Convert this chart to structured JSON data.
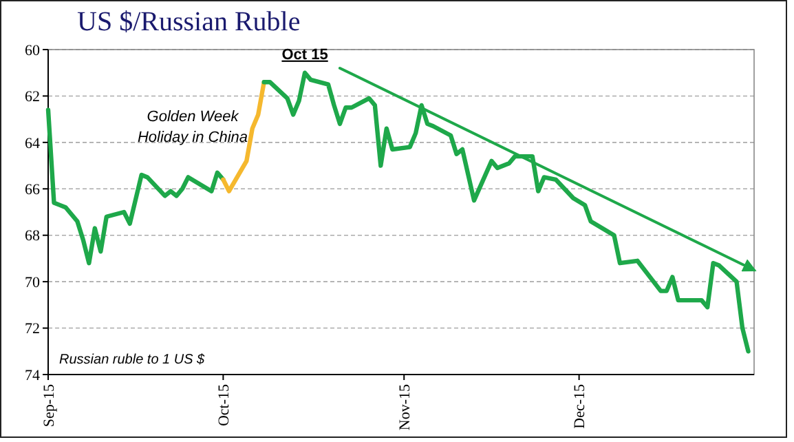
{
  "chart_data": {
    "type": "line",
    "title": "US $/Russian Ruble",
    "xlim": [
      "2015-09-01",
      "2015-12-31"
    ],
    "xticks": [
      {
        "value": "2015-09-01",
        "label": "Sep-15"
      },
      {
        "value": "2015-10-01",
        "label": "Oct-15"
      },
      {
        "value": "2015-11-01",
        "label": "Nov-15"
      },
      {
        "value": "2015-12-01",
        "label": "Dec-15"
      }
    ],
    "ylim": [
      74,
      60
    ],
    "yticks": [
      60,
      62,
      64,
      66,
      68,
      70,
      72,
      74
    ],
    "grid": "y",
    "marker": "none",
    "line_style": "solid",
    "series": [
      {
        "color": "#1ea84a",
        "x": [
          "2015-09-01",
          "2015-09-02",
          "2015-09-03",
          "2015-09-04",
          "2015-09-06",
          "2015-09-07",
          "2015-09-08",
          "2015-09-09",
          "2015-09-10",
          "2015-09-11",
          "2015-09-14",
          "2015-09-15",
          "2015-09-17",
          "2015-09-18",
          "2015-09-21",
          "2015-09-22",
          "2015-09-23",
          "2015-09-24",
          "2015-09-25",
          "2015-09-29",
          "2015-09-30",
          "2015-10-01"
        ],
        "values": [
          62.6,
          66.6,
          66.7,
          66.8,
          67.4,
          68.2,
          69.2,
          67.7,
          68.7,
          67.2,
          67.0,
          67.5,
          65.4,
          65.5,
          66.3,
          66.1,
          66.3,
          66.0,
          65.5,
          66.1,
          65.3,
          65.6
        ]
      },
      {
        "color": "#f5b82e",
        "x": [
          "2015-10-01",
          "2015-10-02",
          "2015-10-05",
          "2015-10-06",
          "2015-10-07",
          "2015-10-08"
        ],
        "values": [
          65.6,
          66.1,
          64.8,
          63.4,
          62.8,
          61.4
        ]
      },
      {
        "color": "#1ea84a",
        "x": [
          "2015-10-08",
          "2015-10-09",
          "2015-10-12",
          "2015-10-13",
          "2015-10-14",
          "2015-10-15",
          "2015-10-16",
          "2015-10-19",
          "2015-10-20",
          "2015-10-21",
          "2015-10-22",
          "2015-10-23",
          "2015-10-26",
          "2015-10-27",
          "2015-10-28",
          "2015-10-29",
          "2015-10-30",
          "2015-11-02",
          "2015-11-03",
          "2015-11-04",
          "2015-11-05",
          "2015-11-06",
          "2015-11-09",
          "2015-11-10",
          "2015-11-11",
          "2015-11-13",
          "2015-11-16",
          "2015-11-17",
          "2015-11-19",
          "2015-11-20",
          "2015-11-23",
          "2015-11-24",
          "2015-11-25",
          "2015-11-27",
          "2015-11-30",
          "2015-12-02",
          "2015-12-03",
          "2015-12-07",
          "2015-12-08",
          "2015-12-11",
          "2015-12-15",
          "2015-12-16",
          "2015-12-17",
          "2015-12-18",
          "2015-12-22",
          "2015-12-23",
          "2015-12-24",
          "2015-12-25",
          "2015-12-28",
          "2015-12-29",
          "2015-12-30"
        ],
        "values": [
          61.4,
          61.4,
          62.1,
          62.8,
          62.2,
          61.0,
          61.3,
          61.5,
          62.4,
          63.2,
          62.5,
          62.5,
          62.1,
          62.4,
          65.0,
          63.4,
          64.3,
          64.2,
          63.6,
          62.4,
          63.2,
          63.3,
          63.7,
          64.5,
          64.3,
          66.5,
          64.8,
          65.1,
          64.9,
          64.6,
          64.6,
          66.1,
          65.5,
          65.6,
          66.4,
          66.7,
          67.4,
          68.0,
          69.2,
          69.1,
          70.4,
          70.4,
          69.8,
          70.8,
          70.8,
          71.1,
          69.2,
          69.3,
          70.0,
          72.0,
          73.0
        ]
      },
      {
        "type": "line",
        "color": "#1ea84a",
        "x": [
          "2015-10-21",
          "2015-12-31"
        ],
        "values": [
          60.8,
          69.5
        ]
      }
    ],
    "annotations": [
      "Golden Week Holiday in China",
      {
        "text": "Oct 15",
        "x": "2015-10-15",
        "y": 61.0
      },
      "Russian ruble to 1 US $"
    ]
  }
}
